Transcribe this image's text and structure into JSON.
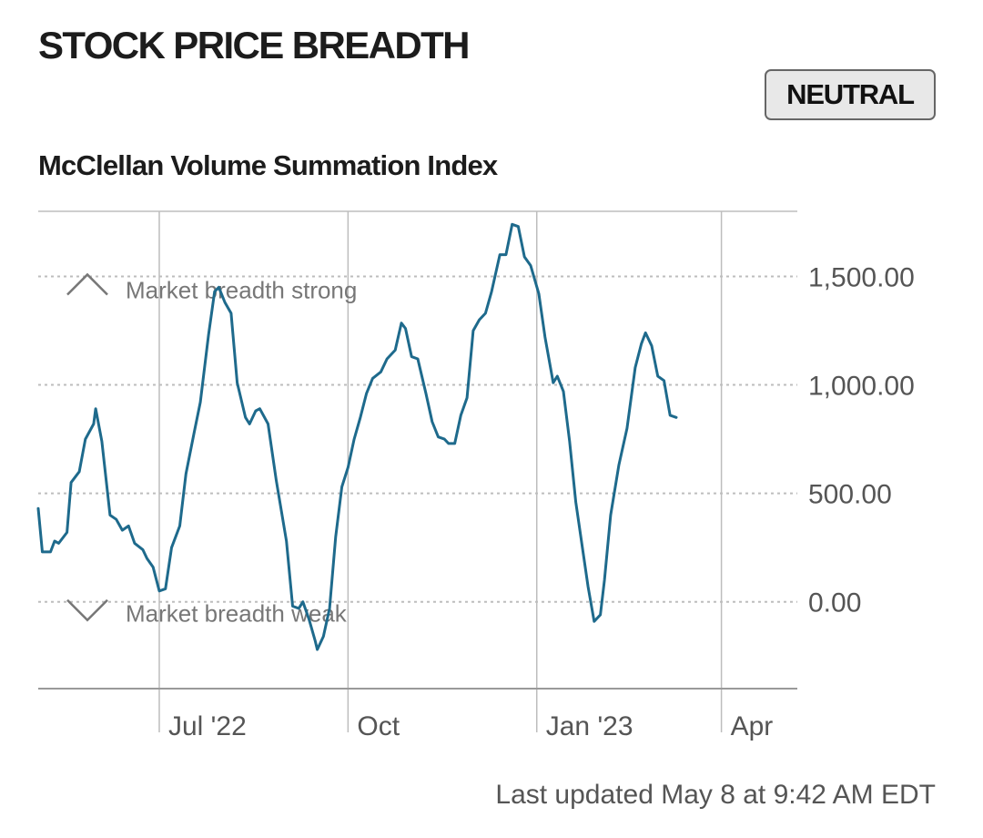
{
  "header": {
    "title": "STOCK PRICE BREADTH",
    "status": "NEUTRAL"
  },
  "footer": {
    "last_updated": "Last updated May 8 at 9:42 AM EDT"
  },
  "colors": {
    "line": "#1e6a8c",
    "grid": "#bdbdbd",
    "axis": "#999999",
    "tick_text": "#555555",
    "annotation": "#777777"
  },
  "chart_data": {
    "type": "line",
    "title": "McClellan Volume Summation Index",
    "xlabel": "",
    "ylabel": "",
    "ylim": [
      -400,
      1800
    ],
    "y_ticks": [
      0,
      500,
      1000,
      1500
    ],
    "y_tick_labels": [
      "0.00",
      "500.00",
      "1,000.00",
      "1,500.00"
    ],
    "x_range": [
      "2022-05-03",
      "2023-05-08"
    ],
    "x_ticks": [
      {
        "date": "2022-07-01",
        "label": "Jul '22"
      },
      {
        "date": "2022-10-01",
        "label": "Oct"
      },
      {
        "date": "2023-01-01",
        "label": "Jan '23"
      },
      {
        "date": "2023-04-01",
        "label": "Apr"
      }
    ],
    "grid": "dotted horizontal at ticks, solid vertical at months",
    "annotations": [
      {
        "label": "Market breadth strong",
        "icon": "chevron-up-icon",
        "value": 1500
      },
      {
        "label": "Market breadth weak",
        "icon": "chevron-down-icon",
        "value": 0
      }
    ],
    "series": [
      {
        "points": [
          [
            "2022-05-03",
            430
          ],
          [
            "2022-05-05",
            230
          ],
          [
            "2022-05-09",
            230
          ],
          [
            "2022-05-11",
            280
          ],
          [
            "2022-05-13",
            270
          ],
          [
            "2022-05-17",
            320
          ],
          [
            "2022-05-19",
            550
          ],
          [
            "2022-05-23",
            600
          ],
          [
            "2022-05-26",
            750
          ],
          [
            "2022-05-30",
            820
          ],
          [
            "2022-05-31",
            890
          ],
          [
            "2022-06-03",
            740
          ],
          [
            "2022-06-07",
            400
          ],
          [
            "2022-06-10",
            380
          ],
          [
            "2022-06-13",
            330
          ],
          [
            "2022-06-16",
            350
          ],
          [
            "2022-06-19",
            270
          ],
          [
            "2022-06-23",
            240
          ],
          [
            "2022-06-25",
            200
          ],
          [
            "2022-06-28",
            160
          ],
          [
            "2022-07-01",
            50
          ],
          [
            "2022-07-04",
            60
          ],
          [
            "2022-07-07",
            250
          ],
          [
            "2022-07-11",
            350
          ],
          [
            "2022-07-14",
            590
          ],
          [
            "2022-07-18",
            780
          ],
          [
            "2022-07-21",
            920
          ],
          [
            "2022-07-25",
            1230
          ],
          [
            "2022-07-28",
            1430
          ],
          [
            "2022-07-30",
            1450
          ],
          [
            "2022-08-02",
            1380
          ],
          [
            "2022-08-05",
            1330
          ],
          [
            "2022-08-08",
            1010
          ],
          [
            "2022-08-12",
            850
          ],
          [
            "2022-08-14",
            820
          ],
          [
            "2022-08-17",
            880
          ],
          [
            "2022-08-19",
            890
          ],
          [
            "2022-08-23",
            820
          ],
          [
            "2022-08-27",
            560
          ],
          [
            "2022-09-01",
            280
          ],
          [
            "2022-09-04",
            -20
          ],
          [
            "2022-09-07",
            -30
          ],
          [
            "2022-09-09",
            0
          ],
          [
            "2022-09-12",
            -80
          ],
          [
            "2022-09-15",
            -180
          ],
          [
            "2022-09-16",
            -220
          ],
          [
            "2022-09-19",
            -160
          ],
          [
            "2022-09-22",
            -30
          ],
          [
            "2022-09-25",
            300
          ],
          [
            "2022-09-28",
            530
          ],
          [
            "2022-10-01",
            620
          ],
          [
            "2022-10-04",
            750
          ],
          [
            "2022-10-07",
            850
          ],
          [
            "2022-10-10",
            960
          ],
          [
            "2022-10-13",
            1030
          ],
          [
            "2022-10-17",
            1060
          ],
          [
            "2022-10-20",
            1120
          ],
          [
            "2022-10-24",
            1160
          ],
          [
            "2022-10-27",
            1285
          ],
          [
            "2022-10-29",
            1260
          ],
          [
            "2022-11-01",
            1130
          ],
          [
            "2022-11-04",
            1120
          ],
          [
            "2022-11-08",
            960
          ],
          [
            "2022-11-11",
            830
          ],
          [
            "2022-11-14",
            760
          ],
          [
            "2022-11-17",
            750
          ],
          [
            "2022-11-19",
            730
          ],
          [
            "2022-11-22",
            730
          ],
          [
            "2022-11-25",
            860
          ],
          [
            "2022-11-28",
            940
          ],
          [
            "2022-12-01",
            1250
          ],
          [
            "2022-12-04",
            1300
          ],
          [
            "2022-12-07",
            1330
          ],
          [
            "2022-12-10",
            1430
          ],
          [
            "2022-12-14",
            1600
          ],
          [
            "2022-12-17",
            1600
          ],
          [
            "2022-12-20",
            1740
          ],
          [
            "2022-12-23",
            1730
          ],
          [
            "2022-12-26",
            1590
          ],
          [
            "2022-12-29",
            1550
          ],
          [
            "2023-01-02",
            1420
          ],
          [
            "2023-01-05",
            1220
          ],
          [
            "2023-01-09",
            1010
          ],
          [
            "2023-01-11",
            1040
          ],
          [
            "2023-01-14",
            970
          ],
          [
            "2023-01-17",
            740
          ],
          [
            "2023-01-20",
            460
          ],
          [
            "2023-01-24",
            200
          ],
          [
            "2023-01-26",
            70
          ],
          [
            "2023-01-29",
            -90
          ],
          [
            "2023-02-01",
            -60
          ],
          [
            "2023-02-03",
            100
          ],
          [
            "2023-02-06",
            400
          ],
          [
            "2023-02-10",
            630
          ],
          [
            "2023-02-14",
            800
          ],
          [
            "2023-02-18",
            1080
          ],
          [
            "2023-02-21",
            1190
          ],
          [
            "2023-02-23",
            1240
          ],
          [
            "2023-02-26",
            1180
          ],
          [
            "2023-03-01",
            1040
          ],
          [
            "2023-03-04",
            1020
          ],
          [
            "2023-03-07",
            860
          ],
          [
            "2023-03-10",
            850
          ]
        ]
      }
    ]
  }
}
